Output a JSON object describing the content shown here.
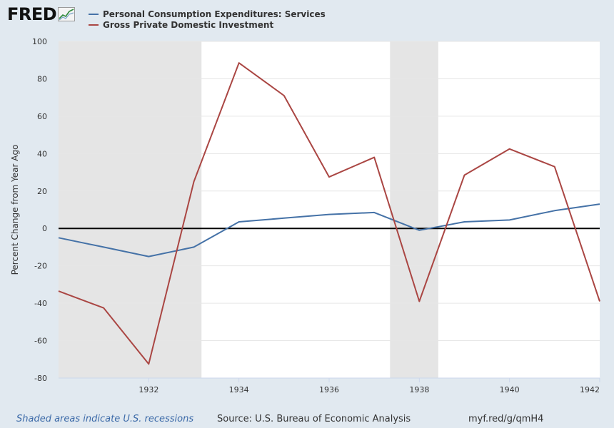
{
  "logo": {
    "text": "FRED"
  },
  "footer": {
    "recession_note": "Shaded areas indicate U.S. recessions",
    "source": "Source: U.S. Bureau of Economic Analysis",
    "url": "myf.red/g/qmH4"
  },
  "colors": {
    "background": "#e1e9f0",
    "plot_bg": "#ffffff",
    "recession": "#e5e5e5",
    "grid": "#e6e6e6",
    "zero_line": "#000000",
    "pce_services": "#4572a7",
    "gpdi": "#aa4643"
  },
  "chart_data": {
    "type": "line",
    "title": "",
    "xlabel": "",
    "ylabel": "Percent Change from Year Ago",
    "xlim": [
      1930,
      1942
    ],
    "ylim": [
      -80,
      100
    ],
    "x_ticks": [
      1932,
      1934,
      1936,
      1938,
      1940,
      1942
    ],
    "y_ticks": [
      -80,
      -60,
      -40,
      -20,
      0,
      20,
      40,
      60,
      80,
      100
    ],
    "grid": true,
    "legend_position": "top-left",
    "recessions": [
      [
        1930,
        1933.17
      ],
      [
        1937.35,
        1938.42
      ]
    ],
    "x": [
      1930,
      1931,
      1932,
      1933,
      1934,
      1935,
      1936,
      1937,
      1938,
      1939,
      1940,
      1941,
      1942
    ],
    "series": [
      {
        "name": "Personal Consumption Expenditures: Services",
        "color": "#4572a7",
        "values": [
          -5,
          -10,
          -15,
          -10,
          3.5,
          5.5,
          7.5,
          8.5,
          -1,
          3.5,
          4.5,
          9.5,
          13
        ]
      },
      {
        "name": "Gross Private Domestic Investment",
        "color": "#aa4643",
        "values": [
          -33.5,
          -42.5,
          -72.5,
          25,
          88.5,
          71,
          27.5,
          38,
          -39,
          28.5,
          42.5,
          33,
          -39
        ]
      }
    ]
  }
}
